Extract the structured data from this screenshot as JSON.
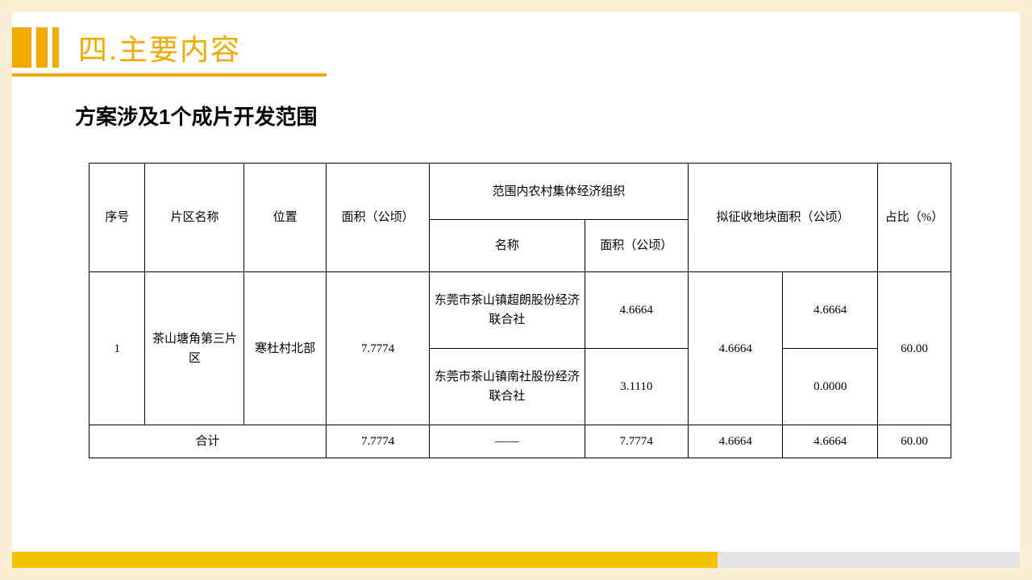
{
  "header": {
    "title": "四.主要内容",
    "subtitle": "方案涉及1个成片开发范围",
    "accent_color": "#f2a900"
  },
  "table": {
    "headers": {
      "seq": "序号",
      "district_name": "片区名称",
      "location": "位置",
      "area": "面积（公顷）",
      "org_group": "范围内农村集体经济组织",
      "org_name": "名称",
      "org_area": "面积（公顷）",
      "planned_area": "拟征收地块面积（公顷）",
      "percent": "占比（%）"
    },
    "rows": [
      {
        "seq": "1",
        "district_name": "茶山塘角第三片区",
        "location": "寒杜村北部",
        "area": "7.7774",
        "orgs": [
          {
            "name": "东莞市茶山镇超朗股份经济联合社",
            "area": "4.6664",
            "planned_2": "4.6664"
          },
          {
            "name": "东莞市茶山镇南社股份经济联合社",
            "area": "3.1110",
            "planned_2": "0.0000"
          }
        ],
        "planned_1": "4.6664",
        "percent": "60.00"
      }
    ],
    "totals": {
      "label": "合计",
      "area": "7.7774",
      "org_name": "——",
      "org_area": "7.7774",
      "planned_1": "4.6664",
      "planned_2": "4.6664",
      "percent": "60.00"
    }
  },
  "colors": {
    "page_bg": "#fbeed4",
    "panel_bg": "#ffffff",
    "accent": "#f2a900",
    "footer_left": "#f2c200",
    "footer_right": "#e3e3e3",
    "text": "#000000"
  }
}
